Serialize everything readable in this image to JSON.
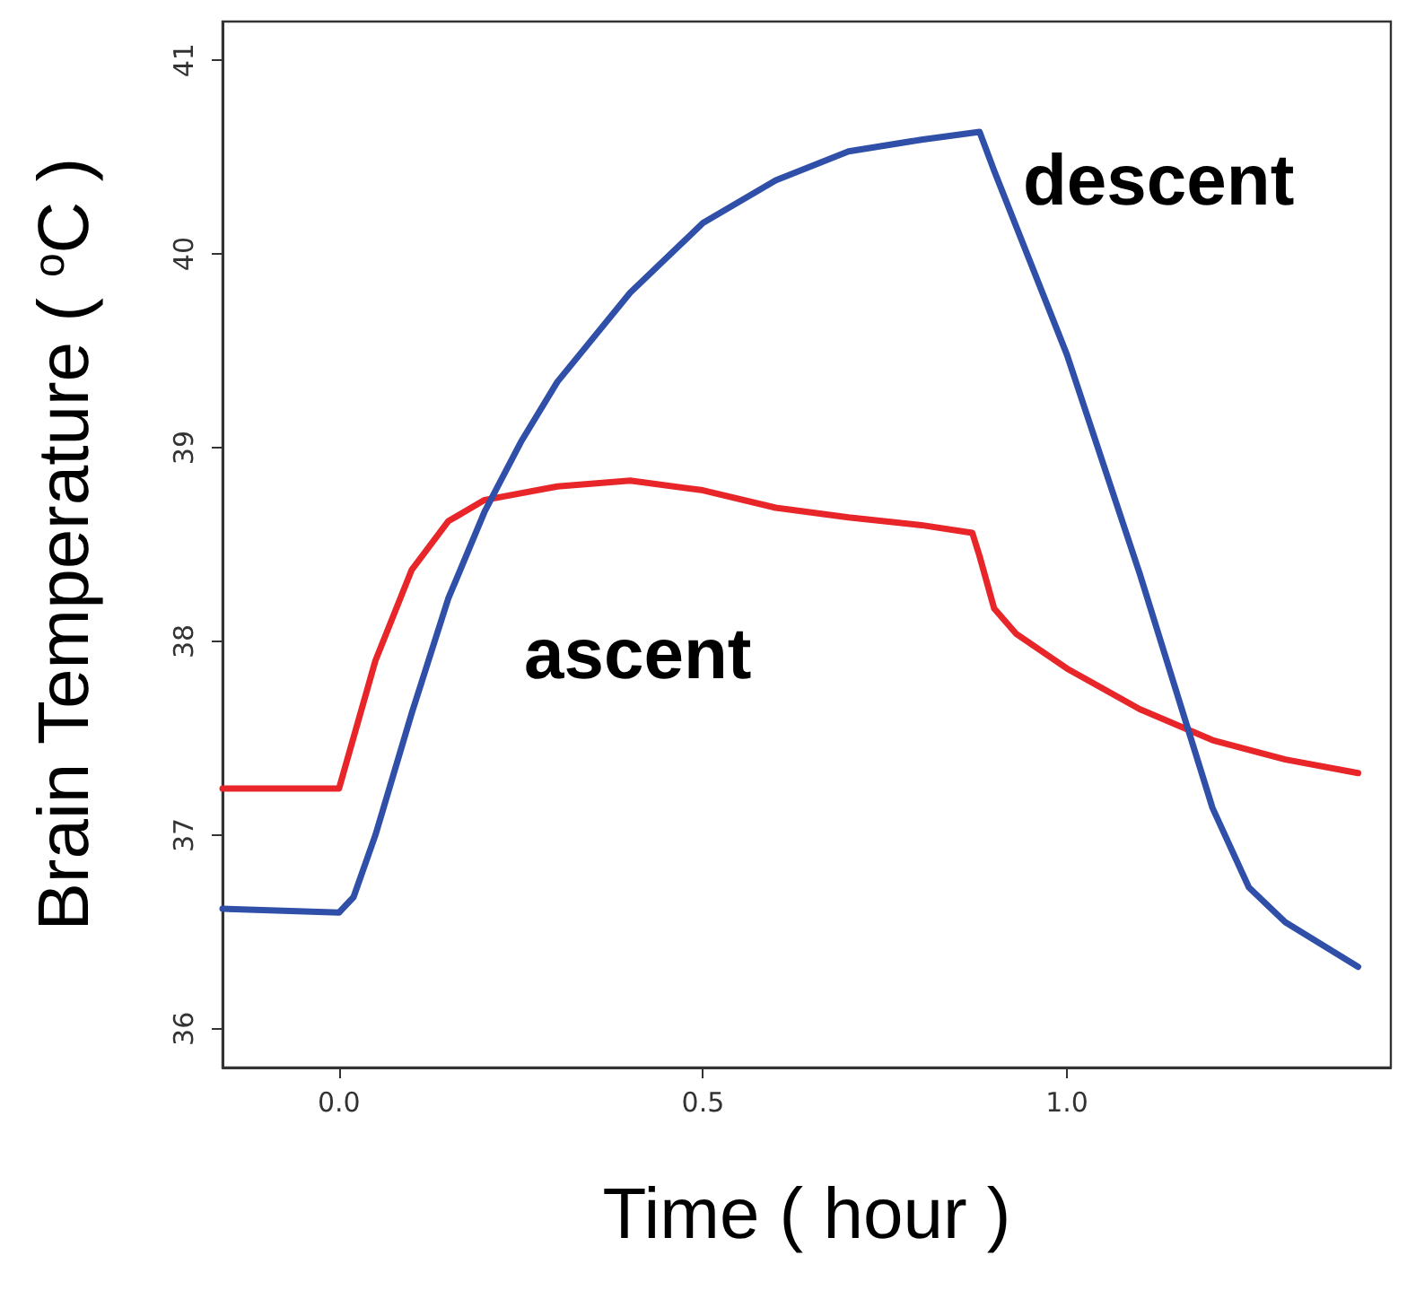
{
  "chart_data": {
    "type": "line",
    "xlabel": "Time ( hour )",
    "ylabel": "Brain Temperature ( $^{o}$C )",
    "xlim": [
      -0.16,
      1.445
    ],
    "ylim": [
      35.8,
      41.2
    ],
    "xticks": [
      {
        "value": 0,
        "label": "0.0"
      },
      0.5,
      {
        "value": 1,
        "label": "1.0"
      }
    ],
    "yticks": [
      36,
      37,
      38,
      39,
      40,
      41
    ],
    "grid": false,
    "marker": "none",
    "line_style": "solid",
    "series": [
      {
        "color": "#e8262a",
        "x": [
          -0.16,
          0,
          0.05,
          0.1,
          0.15,
          0.2,
          0.3,
          0.4,
          0.5,
          0.6,
          0.7,
          0.8,
          0.87,
          0.88,
          0.9,
          0.93,
          1.0,
          1.1,
          1.2,
          1.3,
          1.4
        ],
        "values": [
          37.24,
          37.24,
          37.9,
          38.37,
          38.62,
          38.73,
          38.8,
          38.83,
          38.78,
          38.69,
          38.64,
          38.6,
          38.56,
          38.44,
          38.17,
          38.04,
          37.86,
          37.65,
          37.49,
          37.39,
          37.32
        ]
      },
      {
        "color": "#2f4fa8",
        "x": [
          -0.16,
          0,
          0.02,
          0.05,
          0.1,
          0.15,
          0.2,
          0.25,
          0.3,
          0.4,
          0.5,
          0.6,
          0.7,
          0.8,
          0.88,
          0.9,
          1.0,
          1.1,
          1.2,
          1.25,
          1.3,
          1.4
        ],
        "values": [
          36.62,
          36.6,
          36.68,
          37.0,
          37.63,
          38.22,
          38.67,
          39.03,
          39.34,
          39.8,
          40.16,
          40.38,
          40.53,
          40.59,
          40.63,
          40.43,
          39.48,
          38.35,
          37.14,
          36.73,
          36.55,
          36.32
        ]
      }
    ],
    "annotations": [
      "ascent",
      "descent"
    ]
  }
}
